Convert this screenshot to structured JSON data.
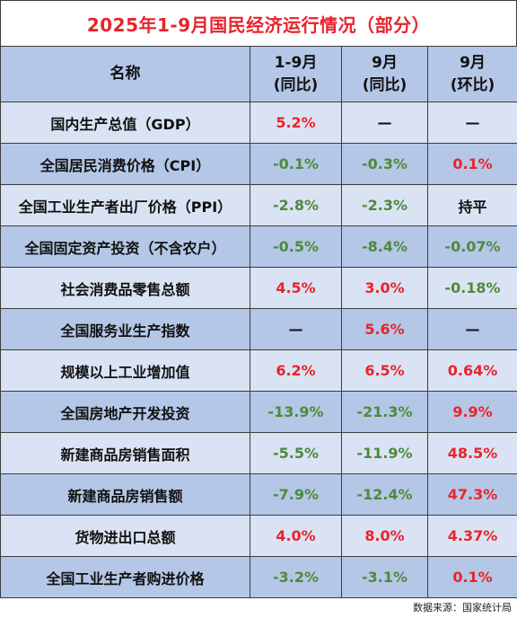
{
  "title": "2025年1-9月国民经济运行情况（部分）",
  "headers": {
    "name": "名称",
    "col1_line1": "1-9月",
    "col1_line2": "(同比)",
    "col2_line1": "9月",
    "col2_line2": "(同比)",
    "col3_line1": "9月",
    "col3_line2": "(环比)"
  },
  "colors": {
    "positive": "#e8242c",
    "negative": "#4e8a3a",
    "neutral": "#111111",
    "header_bg": "#b4c7e7",
    "row_bg_light": "#dae3f3"
  },
  "rows": [
    {
      "name": "国内生产总值（GDP）",
      "v1": "5.2%",
      "v2": "—",
      "v3": "—",
      "t1": "red",
      "t2": "black",
      "t3": "black"
    },
    {
      "name": "全国居民消费价格（CPI）",
      "v1": "-0.1%",
      "v2": "-0.3%",
      "v3": "0.1%",
      "t1": "green",
      "t2": "green",
      "t3": "red"
    },
    {
      "name": "全国工业生产者出厂价格（PPI）",
      "v1": "-2.8%",
      "v2": "-2.3%",
      "v3": "持平",
      "t1": "green",
      "t2": "green",
      "t3": "black"
    },
    {
      "name": "全国固定资产投资（不含农户）",
      "v1": "-0.5%",
      "v2": "-8.4%",
      "v3": "-0.07%",
      "t1": "green",
      "t2": "green",
      "t3": "green"
    },
    {
      "name": "社会消费品零售总额",
      "v1": "4.5%",
      "v2": "3.0%",
      "v3": "-0.18%",
      "t1": "red",
      "t2": "red",
      "t3": "green"
    },
    {
      "name": "全国服务业生产指数",
      "v1": "—",
      "v2": "5.6%",
      "v3": "—",
      "t1": "black",
      "t2": "red",
      "t3": "black"
    },
    {
      "name": "规模以上工业增加值",
      "v1": "6.2%",
      "v2": "6.5%",
      "v3": "0.64%",
      "t1": "red",
      "t2": "red",
      "t3": "red"
    },
    {
      "name": "全国房地产开发投资",
      "v1": "-13.9%",
      "v2": "-21.3%",
      "v3": "9.9%",
      "t1": "green",
      "t2": "green",
      "t3": "red"
    },
    {
      "name": "新建商品房销售面积",
      "v1": "-5.5%",
      "v2": "-11.9%",
      "v3": "48.5%",
      "t1": "green",
      "t2": "green",
      "t3": "red"
    },
    {
      "name": "新建商品房销售额",
      "v1": "-7.9%",
      "v2": "-12.4%",
      "v3": "47.3%",
      "t1": "green",
      "t2": "green",
      "t3": "red"
    },
    {
      "name": "货物进出口总额",
      "v1": "4.0%",
      "v2": "8.0%",
      "v3": "4.37%",
      "t1": "red",
      "t2": "red",
      "t3": "red"
    },
    {
      "name": "全国工业生产者购进价格",
      "v1": "-3.2%",
      "v2": "-3.1%",
      "v3": "0.1%",
      "t1": "green",
      "t2": "green",
      "t3": "red"
    }
  ],
  "source": "数据来源：国家统计局"
}
